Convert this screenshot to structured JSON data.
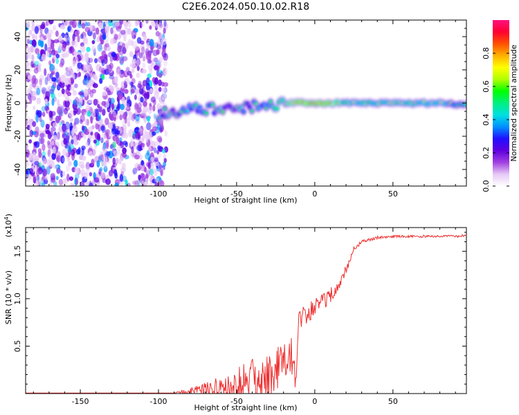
{
  "title": "C2E6.2024.050.10.02.R18",
  "chart_data": [
    {
      "type": "heatmap",
      "xlabel": "Height of straight line (km)",
      "ylabel": "Frequency (Hz)",
      "xlim": [
        -185,
        97
      ],
      "ylim": [
        -50,
        50
      ],
      "xticks": [
        -150,
        -100,
        -50,
        0,
        50
      ],
      "yticks": [
        -40,
        -20,
        0,
        20,
        40
      ],
      "colorbar": {
        "label": "Normalized spectral amplitude",
        "range": [
          0,
          1
        ],
        "ticks": [
          "0.0",
          "0.2",
          "0.4",
          "0.6",
          "0.8"
        ],
        "colors": [
          "#ffffff",
          "#e6c8f5",
          "#a040e0",
          "#6000e0",
          "#2010ff",
          "#0090ff",
          "#00e0e0",
          "#00f080",
          "#00ff00",
          "#b0ff00",
          "#ffff00",
          "#ffb000",
          "#ff5000",
          "#ff0030",
          "#ff1080"
        ]
      },
      "segments": [
        {
          "name": "noise",
          "x_range": [
            -185,
            -95
          ],
          "freq_range": [
            -50,
            50
          ],
          "amplitude": 0.25
        },
        {
          "name": "signal",
          "x": [
            -100,
            -90,
            -80,
            -70,
            -60,
            -50,
            -40,
            -30,
            -20,
            -10,
            0,
            10,
            20,
            40,
            60,
            80,
            97
          ],
          "freq": [
            -7,
            -5,
            -4,
            -4,
            -4,
            -3,
            -2,
            -1,
            0,
            0,
            0,
            0,
            0,
            0,
            0,
            0,
            -1
          ],
          "amplitude": [
            0.3,
            0.4,
            0.45,
            0.45,
            0.4,
            0.4,
            0.4,
            0.5,
            0.6,
            0.8,
            0.85,
            0.8,
            0.6,
            0.6,
            0.6,
            0.55,
            0.5
          ]
        }
      ]
    },
    {
      "type": "line",
      "xlabel": "Height of straight line (km)",
      "ylabel": "SNR (10 * v/v)",
      "multiplier_label": "(x10",
      "multiplier_exp": "4",
      "xlim": [
        -185,
        97
      ],
      "ylim": [
        0,
        1.75
      ],
      "xticks": [
        -150,
        -100,
        -50,
        0,
        50
      ],
      "yticks": [
        "0.5",
        "1.0",
        "1.5"
      ],
      "series": [
        {
          "name": "SNR",
          "color": "#ee3030",
          "x": [
            -185,
            -90,
            -85,
            -80,
            -70,
            -60,
            -55,
            -50,
            -45,
            -40,
            -35,
            -30,
            -25,
            -20,
            -15,
            -12,
            -10,
            -5,
            0,
            5,
            10,
            15,
            20,
            25,
            30,
            40,
            50,
            60,
            70,
            80,
            90,
            97
          ],
          "y": [
            0.005,
            0.005,
            0.04,
            0.06,
            0.12,
            0.18,
            0.22,
            0.28,
            0.33,
            0.38,
            0.42,
            0.46,
            0.5,
            0.55,
            0.6,
            0.3,
            0.9,
            0.95,
            1.0,
            1.05,
            1.12,
            1.2,
            1.35,
            1.55,
            1.62,
            1.66,
            1.67,
            1.67,
            1.67,
            1.67,
            1.67,
            1.68
          ],
          "spread": [
            0,
            0,
            0.05,
            0.08,
            0.15,
            0.25,
            0.32,
            0.4,
            0.45,
            0.5,
            0.55,
            0.55,
            0.5,
            0.45,
            0.4,
            0.3,
            0.25,
            0.22,
            0.2,
            0.18,
            0.16,
            0.12,
            0.1,
            0.05,
            0.04,
            0.03,
            0.025,
            0.025,
            0.025,
            0.025,
            0.025,
            0.03
          ]
        }
      ]
    }
  ]
}
